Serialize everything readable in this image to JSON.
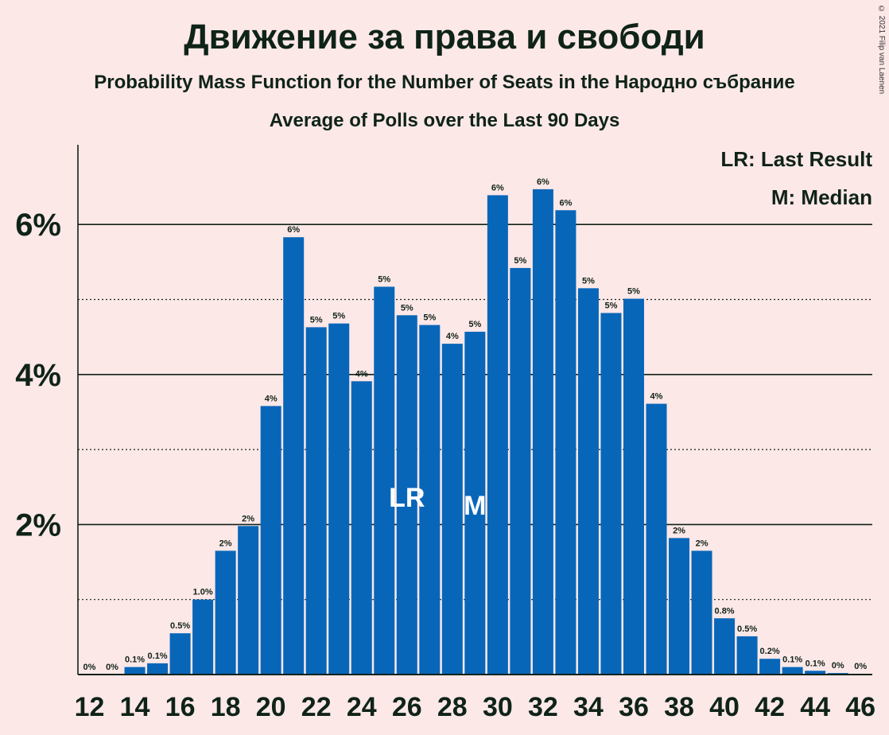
{
  "title": "Движение за права и свободи",
  "subtitle": "Probability Mass Function for the Number of Seats in the Народно събрание",
  "subtitle2": "Average of Polls over the Last 90 Days",
  "copyright": "© 2021 Filip van Laenen",
  "legend": {
    "lr": "LR: Last Result",
    "m": "M: Median"
  },
  "colors": {
    "bar": "#0866B9",
    "background": "#FDE8E8",
    "text": "#0f2318"
  },
  "chart_data": {
    "type": "bar",
    "categories": [
      12,
      13,
      14,
      15,
      16,
      17,
      18,
      19,
      20,
      21,
      22,
      23,
      24,
      25,
      26,
      27,
      28,
      29,
      30,
      31,
      32,
      33,
      34,
      35,
      36,
      37,
      38,
      39,
      40,
      41,
      42,
      43,
      44,
      45,
      46
    ],
    "values": [
      0,
      0,
      0.1,
      0.15,
      0.55,
      1.0,
      1.65,
      1.98,
      3.58,
      5.83,
      4.63,
      4.68,
      3.91,
      5.17,
      4.79,
      4.66,
      4.41,
      4.57,
      6.39,
      5.42,
      6.47,
      6.19,
      5.15,
      4.82,
      5.01,
      3.61,
      1.82,
      1.65,
      0.75,
      0.51,
      0.21,
      0.1,
      0.05,
      0.02,
      0.01
    ],
    "data_labels": [
      "0%",
      "0%",
      "0.1%",
      "0.1%",
      "0.5%",
      "1.0%",
      "2%",
      "2%",
      "4%",
      "6%",
      "5%",
      "5%",
      "4%",
      "5%",
      "5%",
      "5%",
      "4%",
      "5%",
      "6%",
      "5%",
      "6%",
      "6%",
      "5%",
      "5%",
      "5%",
      "4%",
      "2%",
      "2%",
      "0.8%",
      "0.5%",
      "0.2%",
      "0.1%",
      "0.1%",
      "0%",
      "0%"
    ],
    "x_tick_labels": [
      "12",
      "14",
      "16",
      "18",
      "20",
      "22",
      "24",
      "26",
      "28",
      "30",
      "32",
      "34",
      "36",
      "38",
      "40",
      "42",
      "44",
      "46"
    ],
    "y_ticks": [
      {
        "value": 2,
        "label": "2%"
      },
      {
        "value": 4,
        "label": "4%"
      },
      {
        "value": 6,
        "label": "6%"
      }
    ],
    "y_minor_gridlines": [
      1,
      3,
      5
    ],
    "ylim": [
      0,
      7
    ],
    "last_result": {
      "seat": 26,
      "label": "LR"
    },
    "median": {
      "seat": 29,
      "label": "M"
    }
  }
}
